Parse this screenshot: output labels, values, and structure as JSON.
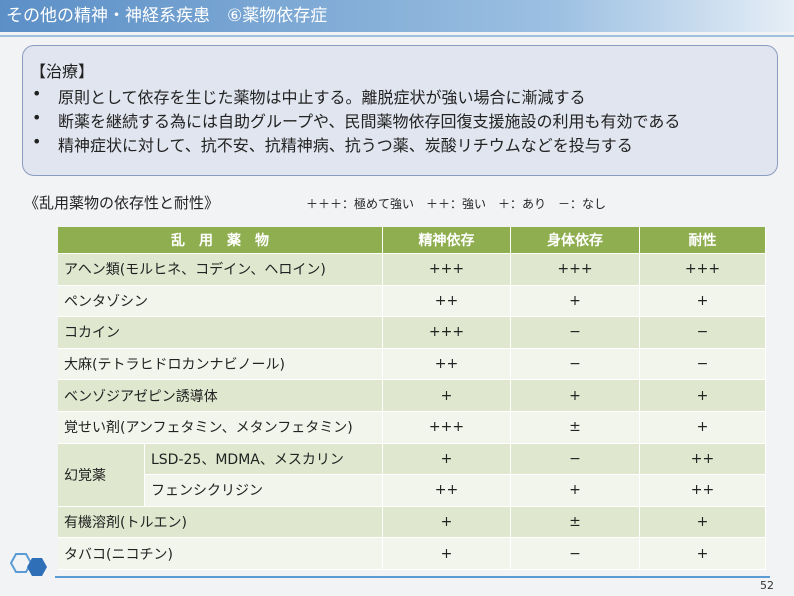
{
  "header": {
    "title": "その他の精神・神経系疾患　⑥薬物依存症"
  },
  "treatment": {
    "heading": "【治療】",
    "bullets": [
      "原則として依存を生じた薬物は中止する。離脱症状が強い場合に漸減する",
      "断薬を継続する為には自助グループや、民間薬物依存回復支援施設の利用も有効である",
      "精神症状に対して、抗不安、抗精神病、抗うつ薬、炭酸リチウムなどを投与する"
    ]
  },
  "table_title": "《乱用薬物の依存性と耐性》",
  "legend": "＋＋＋：極めて強い　＋＋：強い　＋：あり　－：なし",
  "table": {
    "header": [
      "乱　用　薬　物",
      "精神依存",
      "身体依存",
      "耐性"
    ],
    "rows": [
      {
        "name": "アヘン類(モルヒネ、コデイン、ヘロイン)",
        "values": [
          "+++",
          "+++",
          "+++"
        ]
      },
      {
        "name": "ペンタゾシン",
        "values": [
          "++",
          "+",
          "+"
        ]
      },
      {
        "name": "コカイン",
        "values": [
          "+++",
          "−",
          "−"
        ]
      },
      {
        "name": "大麻(テトラヒドロカンナビノール)",
        "values": [
          "++",
          "−",
          "−"
        ]
      },
      {
        "name": "ベンゾジアゼピン誘導体",
        "values": [
          "+",
          "+",
          "+"
        ]
      },
      {
        "name": "覚せい剤(アンフェタミン、メタンフェタミン)",
        "values": [
          "+++",
          "±",
          "+"
        ]
      },
      {
        "name": "幻覚薬",
        "subrows": [
          {
            "name": "LSD-25、MDMA、メスカリン",
            "values": [
              "+",
              "−",
              "++"
            ]
          },
          {
            "name": "フェンシクリジン",
            "values": [
              "++",
              "+",
              "++"
            ]
          }
        ]
      },
      {
        "name": "有機溶剤(トルエン)",
        "values": [
          "+",
          "±",
          "+"
        ]
      },
      {
        "name": "タバコ(ニコチン)",
        "values": [
          "+",
          "−",
          "+"
        ]
      }
    ]
  },
  "page_number": "52"
}
